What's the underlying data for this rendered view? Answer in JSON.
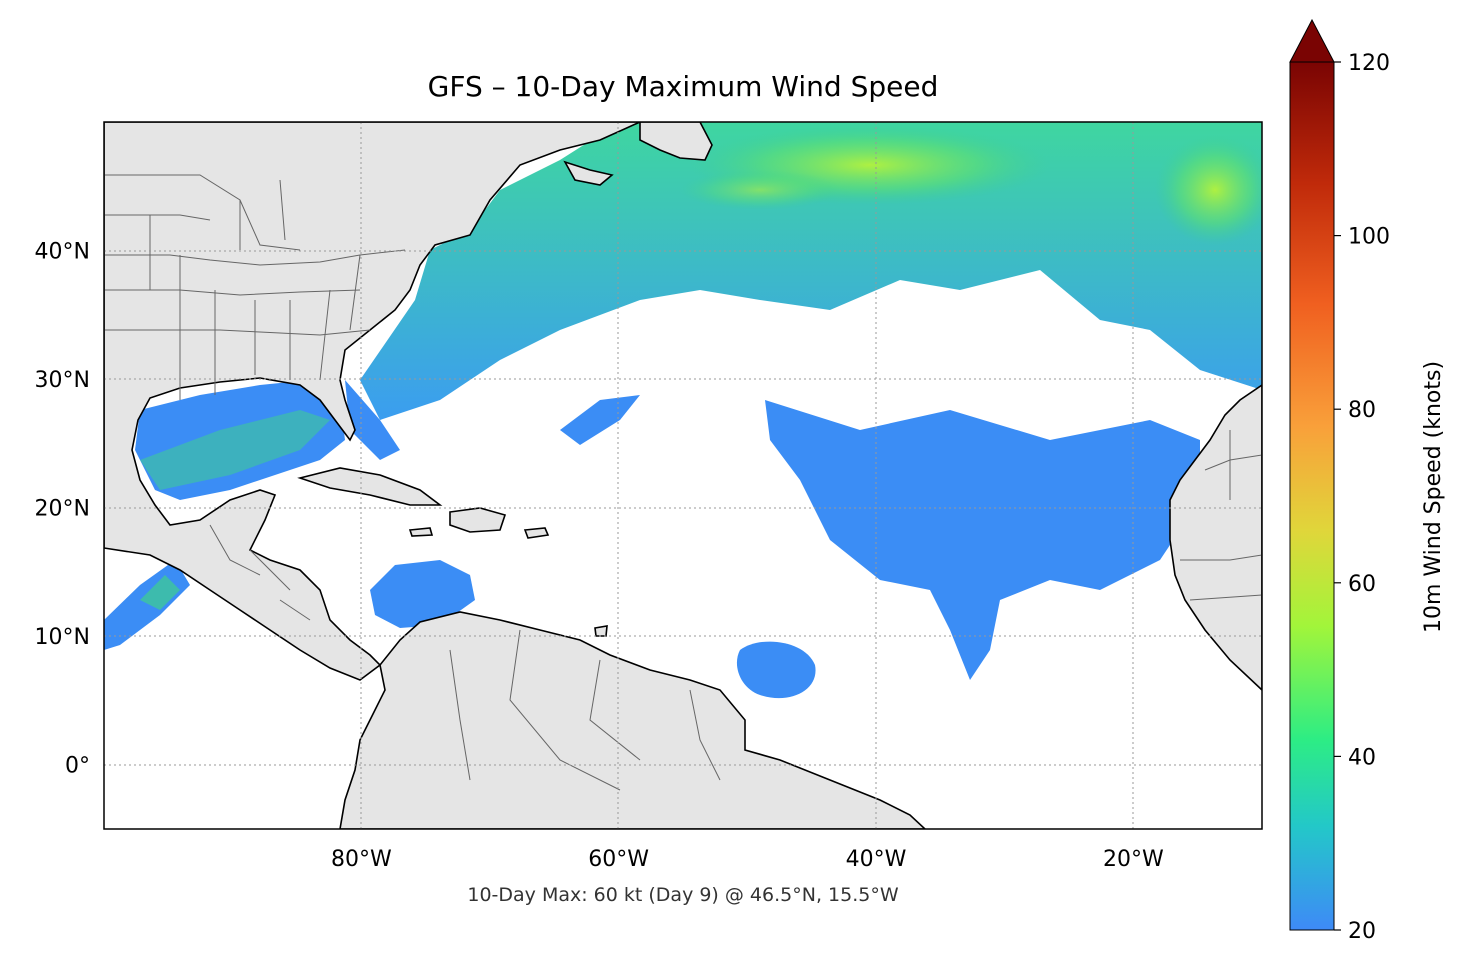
{
  "title": "GFS – 10-Day Maximum Wind Speed",
  "footer": "10-Day Max: 60 kt (Day 9) @ 46.5°N, 15.5°W",
  "map": {
    "lon_range": [
      -100,
      -10
    ],
    "lat_range": [
      -5,
      50
    ],
    "lat_ticks": [
      {
        "value": 40,
        "label": "40°N"
      },
      {
        "value": 30,
        "label": "30°N"
      },
      {
        "value": 20,
        "label": "20°N"
      },
      {
        "value": 10,
        "label": "10°N"
      },
      {
        "value": 0,
        "label": "0°"
      }
    ],
    "lon_ticks": [
      {
        "value": -80,
        "label": "80°W"
      },
      {
        "value": -60,
        "label": "60°W"
      },
      {
        "value": -40,
        "label": "40°W"
      },
      {
        "value": -20,
        "label": "20°W"
      }
    ],
    "grid": true,
    "land_color": "#e5e5e5",
    "ocean_color": "#ffffff",
    "wind_low_color": "#3b8df5",
    "wind_mid_color": "#3fcf8f",
    "wind_high_color": "#b4f23c"
  },
  "colorbar": {
    "label": "10m Wind Speed (knots)",
    "min": 20,
    "max": 120,
    "extend": "max",
    "ticks": [
      {
        "value": 20,
        "label": "20"
      },
      {
        "value": 40,
        "label": "40"
      },
      {
        "value": 60,
        "label": "60"
      },
      {
        "value": 80,
        "label": "80"
      },
      {
        "value": 100,
        "label": "100"
      },
      {
        "value": 120,
        "label": "120"
      }
    ],
    "colors": [
      "#3e8af7",
      "#23c8c8",
      "#2ded84",
      "#a2f53a",
      "#e0d63a",
      "#f9a03a",
      "#f06020",
      "#c02a0a",
      "#7a0403"
    ]
  }
}
